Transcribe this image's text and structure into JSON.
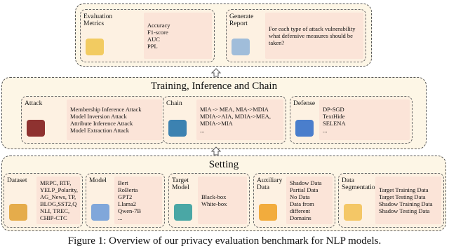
{
  "top": {
    "sections": [
      {
        "title": "Evaluation Metrics",
        "items": [
          "Accuracy",
          "F1-score",
          "AUC",
          "PPL"
        ]
      },
      {
        "title": "Generate Report",
        "items": [
          "For each type of attack vulnerability",
          "what defensive measures should be taken?"
        ]
      }
    ]
  },
  "middle": {
    "title": "Training, Inference and Chain",
    "sections": [
      {
        "title": "Attack",
        "items": [
          "Membership Inference Attack",
          "Model Inversion Attack",
          "Attribute Inference Attack",
          "Model Extraction Attack"
        ]
      },
      {
        "title": "Chain",
        "items": [
          "MIA -> MEA, MIA->MDIA",
          "MDIA->AIA, MDIA->MEA,",
          "MDIA->MIA",
          "..."
        ]
      },
      {
        "title": "Defense",
        "items": [
          "DP-SGD",
          "TextHide",
          "SELENA",
          "..."
        ]
      }
    ]
  },
  "bottom": {
    "title": "Setting",
    "sections": [
      {
        "title": "Dataset",
        "items": [
          "MRPC, RTF,",
          "YELP_Polarity,",
          "AG_News, TP,",
          "BLOG,SST2,Q",
          "NLI, TREC,",
          "CHIP-CTC"
        ]
      },
      {
        "title": "Model",
        "items": [
          "Bert",
          "RoBerta",
          "GPT2",
          "Llama2",
          "Qwen-7B",
          "..."
        ]
      },
      {
        "title": "Target Model",
        "items": [
          "Black-box",
          "White-box"
        ]
      },
      {
        "title": "Auxiliary Data",
        "items": [
          "Shadow Data",
          "Partial Data",
          "No Data",
          "Data from",
          "different",
          "Domains"
        ]
      },
      {
        "title": "Data Segmentation",
        "items": [
          "Target Training Data",
          "Target Testing Data",
          "Shadow Training Data",
          "Shadow Testing Data"
        ]
      }
    ]
  },
  "caption": "Figure 1: Overview of our privacy evaluation benchmark for NLP models."
}
